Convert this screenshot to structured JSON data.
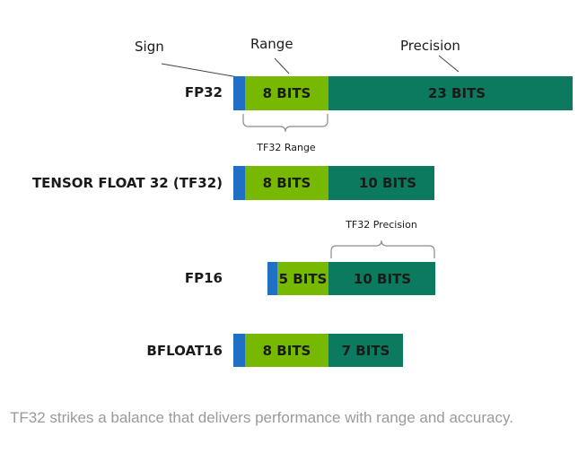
{
  "headers": {
    "sign": "Sign",
    "range": "Range",
    "precision": "Precision"
  },
  "formats": [
    {
      "name": "FP32",
      "sign_bits": 1,
      "exponent_label": "8 BITS",
      "exponent_bits": 8,
      "mantissa_label": "23 BITS",
      "mantissa_bits": 23
    },
    {
      "name": "TENSOR FLOAT 32 (TF32)",
      "sign_bits": 1,
      "exponent_label": "8 BITS",
      "exponent_bits": 8,
      "mantissa_label": "10 BITS",
      "mantissa_bits": 10
    },
    {
      "name": "FP16",
      "sign_bits": 1,
      "exponent_label": "5 BITS",
      "exponent_bits": 5,
      "mantissa_label": "10 BITS",
      "mantissa_bits": 10
    },
    {
      "name": "BFLOAT16",
      "sign_bits": 1,
      "exponent_label": "8 BITS",
      "exponent_bits": 8,
      "mantissa_label": "7 BITS",
      "mantissa_bits": 7
    }
  ],
  "annotations": {
    "tf32_range": "TF32 Range",
    "tf32_precision": "TF32 Precision"
  },
  "caption": "TF32 strikes a balance that delivers performance with range and accuracy.",
  "colors": {
    "sign": "#1f6fc5",
    "exponent": "#76b900",
    "mantissa": "#0b7a5e",
    "text": "#1a1a1a",
    "caption": "#9a9a9a",
    "bracket": "#8a8a8a"
  }
}
